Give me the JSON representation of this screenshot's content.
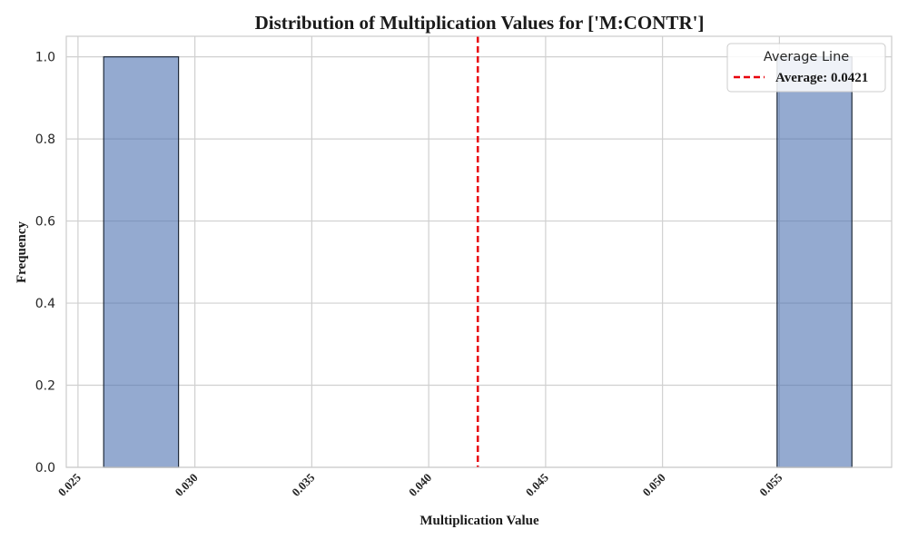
{
  "chart_data": {
    "type": "bar",
    "title": "Distribution of Multiplication Values for ['M:CONTR']",
    "xlabel": "Multiplication Value",
    "ylabel": "Frequency",
    "xlim": [
      0.0245,
      0.0598
    ],
    "ylim": [
      0,
      1.05
    ],
    "x_ticks": [
      0.025,
      0.03,
      0.035,
      0.04,
      0.045,
      0.05,
      0.055
    ],
    "x_tick_labels": [
      "0.025",
      "0.030",
      "0.035",
      "0.040",
      "0.045",
      "0.050",
      "0.055"
    ],
    "y_ticks": [
      0.0,
      0.2,
      0.4,
      0.6,
      0.8,
      1.0
    ],
    "y_tick_labels": [
      "0.0",
      "0.2",
      "0.4",
      "0.6",
      "0.8",
      "1.0"
    ],
    "bins": [
      {
        "x0": 0.0261,
        "x1": 0.0293,
        "count": 1
      },
      {
        "x0": 0.0293,
        "x1": 0.0325,
        "count": 0
      },
      {
        "x0": 0.0325,
        "x1": 0.0357,
        "count": 0
      },
      {
        "x0": 0.0357,
        "x1": 0.0389,
        "count": 0
      },
      {
        "x0": 0.0389,
        "x1": 0.0421,
        "count": 0
      },
      {
        "x0": 0.0421,
        "x1": 0.0453,
        "count": 0
      },
      {
        "x0": 0.0453,
        "x1": 0.0485,
        "count": 0
      },
      {
        "x0": 0.0485,
        "x1": 0.0517,
        "count": 0
      },
      {
        "x0": 0.0517,
        "x1": 0.0549,
        "count": 0
      },
      {
        "x0": 0.0549,
        "x1": 0.0581,
        "count": 1
      }
    ],
    "average_line": {
      "value": 0.0421,
      "style": "dashed",
      "color": "#e8000b"
    },
    "legend": {
      "title": "Average Line",
      "entry": "Average: 0.0421",
      "placement": "top-right"
    },
    "grid": true,
    "colors": {
      "bar_fill": "#4c72b0",
      "bar_edge": "#1f2a3a",
      "grid": "#d0d0d0",
      "axes_edge": "#cccccc",
      "average_line": "#e8000b"
    }
  }
}
